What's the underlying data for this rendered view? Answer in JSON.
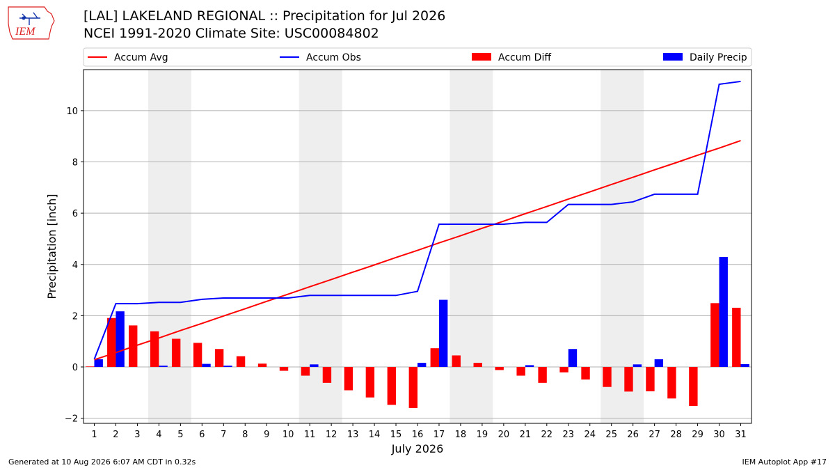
{
  "header": {
    "title_line1": "[LAL] LAKELAND REGIONAL :: Precipitation for Jul 2026",
    "title_line2": "NCEI 1991-2020 Climate Site: USC00084802",
    "logo_text": "IEM"
  },
  "footer": {
    "generated": "Generated at 10 Aug 2026 6:07 AM CDT in 0.32s",
    "app": "IEM Autoplot App #17"
  },
  "colors": {
    "accum_avg": "#ff0000",
    "accum_obs": "#0000ff",
    "accum_diff": "#ff0000",
    "daily_precip": "#0000ff",
    "weekend_shade": "#eeeeee",
    "grid": "#b0b0b0"
  },
  "chart_data": {
    "type": "bar",
    "xlabel": "July 2026",
    "ylabel": "Precipitation [inch]",
    "ylim": [
      -2.2,
      11.6
    ],
    "yticks": [
      -2,
      0,
      2,
      4,
      6,
      8,
      10
    ],
    "xlim": [
      0.5,
      31.5
    ],
    "x": [
      1,
      2,
      3,
      4,
      5,
      6,
      7,
      8,
      9,
      10,
      11,
      12,
      13,
      14,
      15,
      16,
      17,
      18,
      19,
      20,
      21,
      22,
      23,
      24,
      25,
      26,
      27,
      28,
      29,
      30,
      31
    ],
    "grid": "horizontal",
    "legend_position": "top",
    "shaded_days": [
      [
        4,
        5
      ],
      [
        11,
        12
      ],
      [
        18,
        19
      ],
      [
        25,
        26
      ]
    ],
    "series": [
      {
        "name": "Accum Avg",
        "kind": "line",
        "values": [
          0.28,
          0.56,
          0.85,
          1.13,
          1.42,
          1.7,
          1.99,
          2.27,
          2.56,
          2.84,
          3.13,
          3.41,
          3.7,
          3.98,
          4.27,
          4.55,
          4.84,
          5.12,
          5.41,
          5.69,
          5.98,
          6.26,
          6.55,
          6.83,
          7.12,
          7.4,
          7.69,
          7.97,
          8.26,
          8.54,
          8.83
        ]
      },
      {
        "name": "Accum Obs",
        "kind": "line",
        "values": [
          0.3,
          2.47,
          2.47,
          2.52,
          2.52,
          2.64,
          2.69,
          2.69,
          2.69,
          2.69,
          2.79,
          2.79,
          2.79,
          2.79,
          2.79,
          2.95,
          5.57,
          5.57,
          5.57,
          5.57,
          5.64,
          5.64,
          6.34,
          6.34,
          6.34,
          6.44,
          6.74,
          6.74,
          6.74,
          11.03,
          11.14
        ]
      },
      {
        "name": "Accum Diff",
        "kind": "bar",
        "values": [
          0.02,
          1.91,
          1.62,
          1.39,
          1.1,
          0.94,
          0.7,
          0.42,
          0.13,
          -0.15,
          -0.34,
          -0.62,
          -0.91,
          -1.19,
          -1.48,
          -1.6,
          0.73,
          0.45,
          0.16,
          -0.12,
          -0.34,
          -0.62,
          -0.21,
          -0.49,
          -0.78,
          -0.96,
          -0.95,
          -1.23,
          -1.52,
          2.49,
          2.31
        ]
      },
      {
        "name": "Daily Precip",
        "kind": "bar",
        "values": [
          0.3,
          2.17,
          0.0,
          0.05,
          0.0,
          0.12,
          0.05,
          0.0,
          0.0,
          0.0,
          0.1,
          0.0,
          0.0,
          0.0,
          0.0,
          0.16,
          2.62,
          0.0,
          0.0,
          0.0,
          0.07,
          0.0,
          0.7,
          0.0,
          0.0,
          0.1,
          0.3,
          0.0,
          0.0,
          4.29,
          0.11
        ]
      }
    ]
  }
}
